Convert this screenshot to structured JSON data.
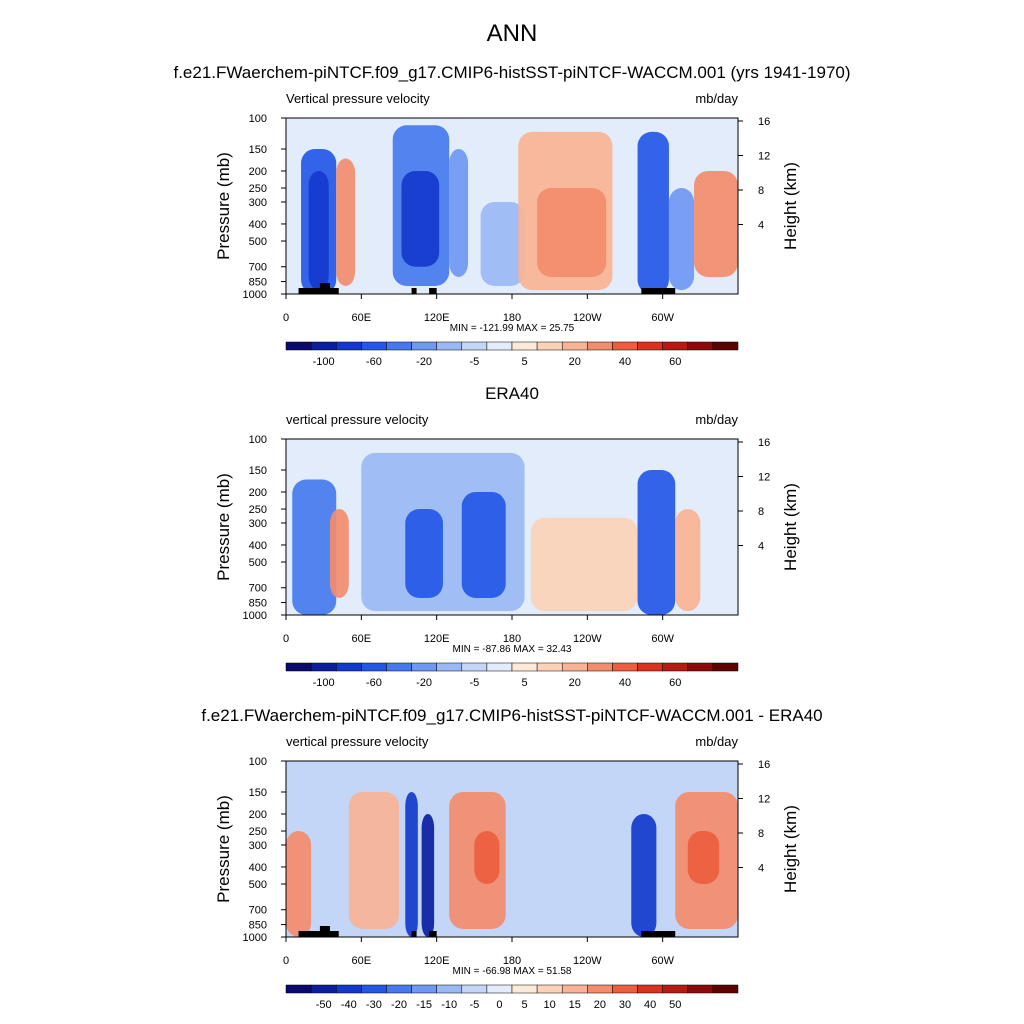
{
  "page": {
    "main_title": "ANN"
  },
  "palette": {
    "colors": [
      "#0a0a6e",
      "#0b1f9e",
      "#1339cc",
      "#2457e6",
      "#4679ee",
      "#6f98f2",
      "#9ab8f4",
      "#c3d6f7",
      "#e2ecfb",
      "#fde9d8",
      "#fbd2b8",
      "#f8b394",
      "#f38c6c",
      "#ec5e3f",
      "#d9321f",
      "#b51b12",
      "#8c0a0a",
      "#5e0000"
    ]
  },
  "chart_data": [
    {
      "type": "heatmap",
      "title": "f.e21.FWaerchem-piNTCF.f09_g17.CMIP6-histSST-piNTCF-WACCM.001 (yrs 1941-1970)",
      "left_label": "Vertical pressure velocity",
      "right_label": "mb/day",
      "ylabel": "Pressure (mb)",
      "y2label": "Height (km)",
      "yticks": [
        "100",
        "150",
        "200",
        "250",
        "300",
        "400",
        "500",
        "700",
        "850",
        "1000"
      ],
      "ytick_values": [
        100,
        150,
        200,
        250,
        300,
        400,
        500,
        700,
        850,
        1000
      ],
      "y2ticks": [
        "16",
        "12",
        "8",
        "4"
      ],
      "y2tick_values": [
        16,
        12,
        8,
        4
      ],
      "xticks": [
        "0",
        "60E",
        "120E",
        "180",
        "120W",
        "60W"
      ],
      "xtick_values": [
        0,
        60,
        120,
        180,
        240,
        300
      ],
      "xlim": [
        0,
        360
      ],
      "ylim": [
        1000,
        100
      ],
      "stats": "MIN = -121.99  MAX =  25.75",
      "colorbar_labels": [
        "-100",
        "-60",
        "-20",
        "-5",
        "5",
        "20",
        "40",
        "60"
      ],
      "colorbar_levels": [
        -120,
        -100,
        -80,
        -60,
        -40,
        -30,
        -20,
        -10,
        -5,
        0,
        5,
        10,
        20,
        30,
        40,
        50,
        60,
        70
      ],
      "topography": true,
      "regions": [
        {
          "lon": [
            12,
            40
          ],
          "p": [
            150,
            1000
          ],
          "value": -45
        },
        {
          "lon": [
            18,
            34
          ],
          "p": [
            200,
            950
          ],
          "value": -80
        },
        {
          "lon": [
            40,
            55
          ],
          "p": [
            170,
            900
          ],
          "value": 20
        },
        {
          "lon": [
            85,
            130
          ],
          "p": [
            110,
            900
          ],
          "value": -40
        },
        {
          "lon": [
            92,
            122
          ],
          "p": [
            200,
            700
          ],
          "value": -70
        },
        {
          "lon": [
            130,
            145
          ],
          "p": [
            150,
            800
          ],
          "value": -25
        },
        {
          "lon": [
            155,
            190
          ],
          "p": [
            300,
            900
          ],
          "value": -12
        },
        {
          "lon": [
            185,
            260
          ],
          "p": [
            120,
            950
          ],
          "value": 10
        },
        {
          "lon": [
            200,
            255
          ],
          "p": [
            250,
            800
          ],
          "value": 25
        },
        {
          "lon": [
            280,
            305
          ],
          "p": [
            120,
            1000
          ],
          "value": -60
        },
        {
          "lon": [
            305,
            325
          ],
          "p": [
            250,
            950
          ],
          "value": -25
        },
        {
          "lon": [
            325,
            360
          ],
          "p": [
            200,
            800
          ],
          "value": 20
        }
      ]
    },
    {
      "type": "heatmap",
      "title": "ERA40",
      "left_label": "vertical pressure velocity",
      "right_label": "mb/day",
      "ylabel": "Pressure (mb)",
      "y2label": "Height (km)",
      "yticks": [
        "100",
        "150",
        "200",
        "250",
        "300",
        "400",
        "500",
        "700",
        "850",
        "1000"
      ],
      "ytick_values": [
        100,
        150,
        200,
        250,
        300,
        400,
        500,
        700,
        850,
        1000
      ],
      "y2ticks": [
        "16",
        "12",
        "8",
        "4"
      ],
      "y2tick_values": [
        16,
        12,
        8,
        4
      ],
      "xticks": [
        "0",
        "60E",
        "120E",
        "180",
        "120W",
        "60W"
      ],
      "xtick_values": [
        0,
        60,
        120,
        180,
        240,
        300
      ],
      "xlim": [
        0,
        360
      ],
      "ylim": [
        1000,
        100
      ],
      "stats": "MIN = -87.86  MAX =  32.43",
      "colorbar_labels": [
        "-100",
        "-60",
        "-20",
        "-5",
        "5",
        "20",
        "40",
        "60"
      ],
      "colorbar_levels": [
        -120,
        -100,
        -80,
        -60,
        -40,
        -30,
        -20,
        -10,
        -5,
        0,
        5,
        10,
        20,
        30,
        40,
        50,
        60,
        70
      ],
      "topography": false,
      "regions": [
        {
          "lon": [
            5,
            40
          ],
          "p": [
            170,
            1000
          ],
          "value": -35
        },
        {
          "lon": [
            35,
            50
          ],
          "p": [
            250,
            800
          ],
          "value": 25
        },
        {
          "lon": [
            60,
            190
          ],
          "p": [
            120,
            950
          ],
          "value": -15
        },
        {
          "lon": [
            95,
            125
          ],
          "p": [
            250,
            800
          ],
          "value": -45
        },
        {
          "lon": [
            140,
            175
          ],
          "p": [
            200,
            800
          ],
          "value": -45
        },
        {
          "lon": [
            195,
            280
          ],
          "p": [
            280,
            950
          ],
          "value": 8
        },
        {
          "lon": [
            280,
            310
          ],
          "p": [
            150,
            1000
          ],
          "value": -45
        },
        {
          "lon": [
            310,
            330
          ],
          "p": [
            250,
            950
          ],
          "value": 10
        }
      ]
    },
    {
      "type": "heatmap",
      "title": "f.e21.FWaerchem-piNTCF.f09_g17.CMIP6-histSST-piNTCF-WACCM.001 - ERA40",
      "left_label": "vertical pressure velocity",
      "right_label": "mb/day",
      "ylabel": "Pressure (mb)",
      "y2label": "Height (km)",
      "yticks": [
        "100",
        "150",
        "200",
        "250",
        "300",
        "400",
        "500",
        "700",
        "850",
        "1000"
      ],
      "ytick_values": [
        100,
        150,
        200,
        250,
        300,
        400,
        500,
        700,
        850,
        1000
      ],
      "y2ticks": [
        "16",
        "12",
        "8",
        "4"
      ],
      "y2tick_values": [
        16,
        12,
        8,
        4
      ],
      "xticks": [
        "0",
        "60E",
        "120E",
        "180",
        "120W",
        "60W"
      ],
      "xtick_values": [
        0,
        60,
        120,
        180,
        240,
        300
      ],
      "xlim": [
        0,
        360
      ],
      "ylim": [
        1000,
        100
      ],
      "stats": "MIN = -66.98  MAX =  51.58",
      "colorbar_labels": [
        "-50",
        "-40",
        "-30",
        "-20",
        "-15",
        "-10",
        "-5",
        "0",
        "5",
        "10",
        "15",
        "20",
        "30",
        "40",
        "50"
      ],
      "colorbar_levels": [
        -60,
        -50,
        -40,
        -30,
        -20,
        -15,
        -10,
        -5,
        0,
        5,
        10,
        15,
        20,
        30,
        40,
        50,
        60,
        70
      ],
      "topography": true,
      "regions": [
        {
          "lon": [
            0,
            20
          ],
          "p": [
            250,
            1000
          ],
          "value": 20
        },
        {
          "lon": [
            50,
            90
          ],
          "p": [
            150,
            900
          ],
          "value": 15
        },
        {
          "lon": [
            95,
            105
          ],
          "p": [
            150,
            1000
          ],
          "value": -40
        },
        {
          "lon": [
            108,
            118
          ],
          "p": [
            200,
            1000
          ],
          "value": -50
        },
        {
          "lon": [
            130,
            175
          ],
          "p": [
            150,
            900
          ],
          "value": 20
        },
        {
          "lon": [
            150,
            170
          ],
          "p": [
            250,
            500
          ],
          "value": 30
        },
        {
          "lon": [
            275,
            295
          ],
          "p": [
            200,
            1000
          ],
          "value": -40
        },
        {
          "lon": [
            310,
            360
          ],
          "p": [
            150,
            900
          ],
          "value": 20
        },
        {
          "lon": [
            320,
            345
          ],
          "p": [
            250,
            500
          ],
          "value": 30
        }
      ]
    }
  ]
}
